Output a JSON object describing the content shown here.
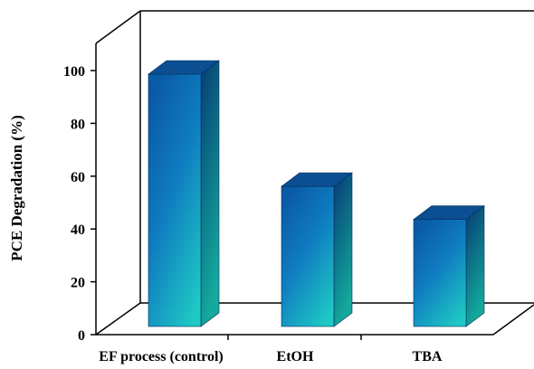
{
  "chart_data": {
    "type": "bar",
    "style": "3d",
    "categories": [
      "EF process (control)",
      "EtOH",
      "TBA"
    ],
    "values": [
      100,
      57.5,
      45
    ],
    "title": "",
    "xlabel": "",
    "ylabel": "PCE Degradation (%)",
    "ylim": [
      0,
      100
    ],
    "yticks": [
      "0",
      "20",
      "40",
      "60",
      "80",
      "100"
    ],
    "grid": false,
    "legend": "none",
    "colors": {
      "bar_front_top": "#0a5aa6",
      "bar_front_mid": "#0f7cc0",
      "bar_front_bottom": "#1ec8c4",
      "bar_side_top": "#063a74",
      "bar_side_bottom": "#14a99c",
      "bar_top": "#0b4f92",
      "axis": "#000000"
    }
  }
}
